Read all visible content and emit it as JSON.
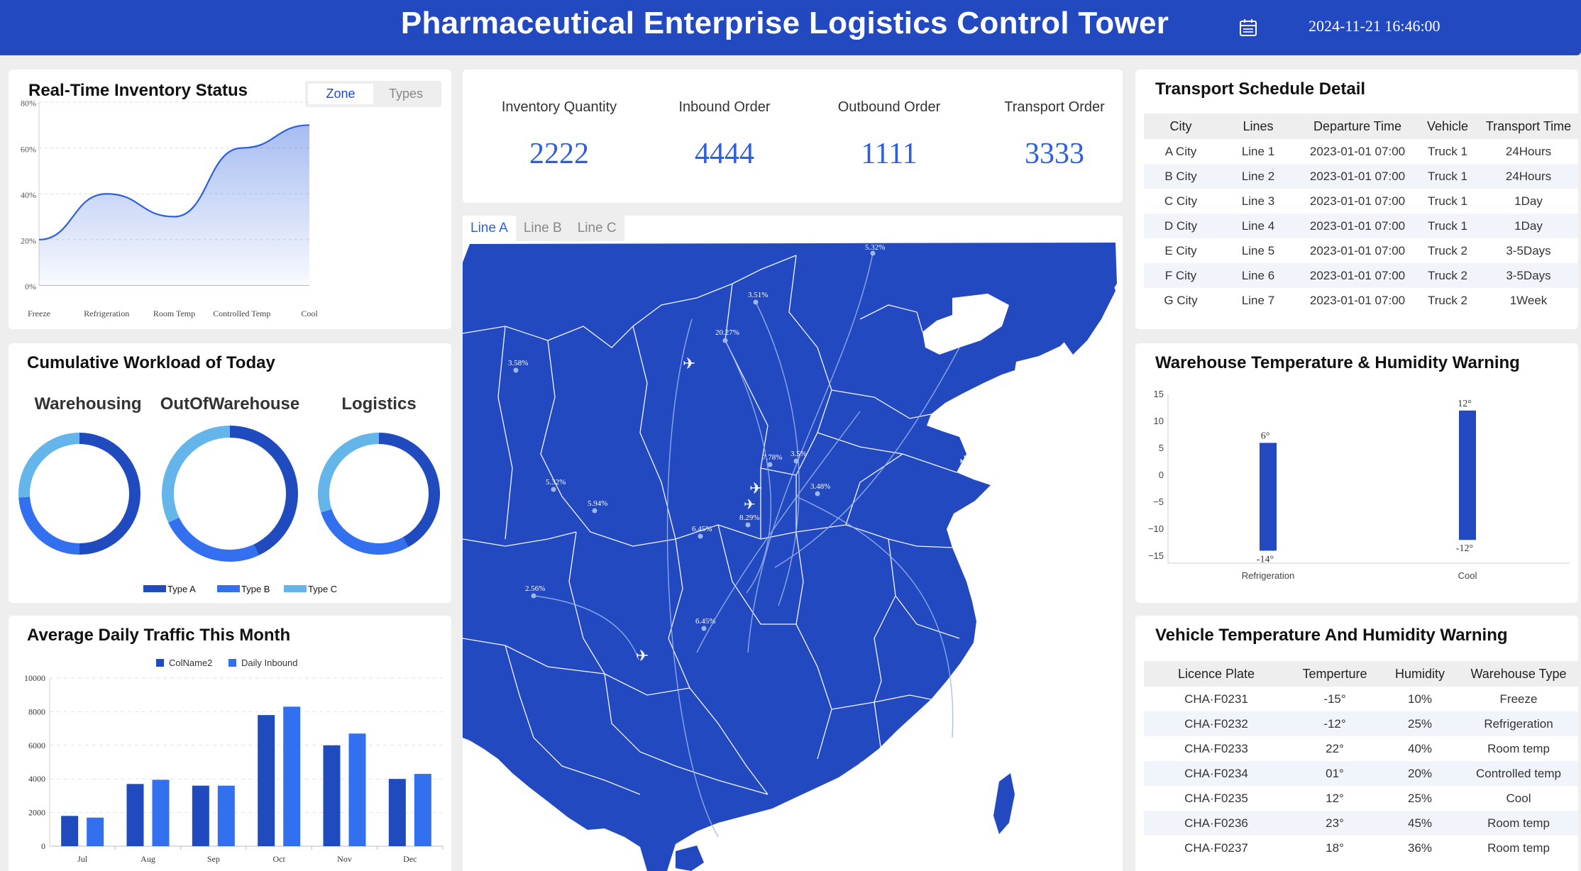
{
  "header": {
    "title": "Pharmaceutical Enterprise Logistics Control Tower",
    "datetime": "2024-11-21 16:46:00",
    "calendar_icon": "calendar-icon"
  },
  "colors": {
    "primary": "#2249c0",
    "accent": "#2c5fe0",
    "typeA": "#1f4bbf",
    "typeB": "#3370f0",
    "typeC": "#64b5ea"
  },
  "inventory": {
    "title": "Real-Time Inventory Status",
    "tabs": [
      "Zone",
      "Types"
    ],
    "active_tab": "Zone"
  },
  "workload": {
    "title": "Cumulative Workload of Today",
    "groups": [
      "Warehousing",
      "OutOfWarehouse",
      "Logistics"
    ],
    "legend": [
      "Type A",
      "Type B",
      "Type C"
    ]
  },
  "traffic": {
    "title": "Average Daily Traffic This Month",
    "legend": [
      "ColName2",
      "Daily Inbound"
    ]
  },
  "stats": [
    {
      "label": "Inventory Quantity",
      "value": "2222"
    },
    {
      "label": "Inbound Order",
      "value": "4444"
    },
    {
      "label": "Outbound Order",
      "value": "1111"
    },
    {
      "label": "Transport Order",
      "value": "3333"
    }
  ],
  "map": {
    "tabs": [
      "Line A",
      "Line B",
      "Line C"
    ],
    "active_tab": "Line A",
    "point_labels": [
      "5.32%",
      "3.51%",
      "20.27%",
      "3.58%",
      "7.78%",
      "3.5%",
      "3.48%",
      "5.32%",
      "5.94%",
      "8.29%",
      "6.45%",
      "2.56%",
      "6.45%"
    ]
  },
  "schedule": {
    "title": "Transport Schedule Detail",
    "columns": [
      "City",
      "Lines",
      "Departure Time",
      "Vehicle",
      "Transport Time"
    ],
    "rows": [
      [
        "A City",
        "Line 1",
        "2023-01-01 07:00",
        "Truck 1",
        "24Hours"
      ],
      [
        "B City",
        "Line 2",
        "2023-01-01 07:00",
        "Truck 1",
        "24Hours"
      ],
      [
        "C City",
        "Line 3",
        "2023-01-01 07:00",
        "Truck 1",
        "1Day"
      ],
      [
        "D City",
        "Line 4",
        "2023-01-01 07:00",
        "Truck 1",
        "1Day"
      ],
      [
        "E City",
        "Line 5",
        "2023-01-01 07:00",
        "Truck 2",
        "3-5Days"
      ],
      [
        "F City",
        "Line 6",
        "2023-01-01 07:00",
        "Truck 2",
        "3-5Days"
      ],
      [
        "G City",
        "Line 7",
        "2023-01-01 07:00",
        "Truck 2",
        "1Week"
      ]
    ]
  },
  "warehouse_warning": {
    "title": "Warehouse Temperature & Humidity Warning"
  },
  "vehicle_warning": {
    "title": "Vehicle Temperature And Humidity Warning",
    "columns": [
      "Licence Plate",
      "Temperture",
      "Humidity",
      "Warehouse Type"
    ],
    "rows": [
      [
        "CHA·F0231",
        "-15°",
        "10%",
        "Freeze"
      ],
      [
        "CHA·F0232",
        "-12°",
        "25%",
        "Refrigeration"
      ],
      [
        "CHA·F0233",
        "22°",
        "40%",
        "Room temp"
      ],
      [
        "CHA·F0234",
        "01°",
        "20%",
        "Controlled temp"
      ],
      [
        "CHA·F0235",
        "12°",
        "25%",
        "Cool"
      ],
      [
        "CHA·F0236",
        "23°",
        "45%",
        "Room temp"
      ],
      [
        "CHA·F0237",
        "18°",
        "36%",
        "Room temp"
      ]
    ]
  },
  "chart_data": [
    {
      "type": "area",
      "categories": [
        "Freeze",
        "Refrigeration",
        "Room Temp",
        "Controlled Temp",
        "Cool"
      ],
      "values": [
        20,
        40,
        30,
        60,
        70
      ],
      "ylim": [
        0,
        80
      ],
      "yticks": [
        "0%",
        "20%",
        "40%",
        "60%",
        "80%"
      ],
      "grid": true
    },
    {
      "type": "pie",
      "groups": [
        {
          "name": "Warehousing",
          "slices": [
            {
              "name": "Type A",
              "value": 50
            },
            {
              "name": "Type B",
              "value": 24
            },
            {
              "name": "Type C",
              "value": 26
            }
          ]
        },
        {
          "name": "OutOfWarehouse",
          "slices": [
            {
              "name": "Type A",
              "value": 43
            },
            {
              "name": "Type B",
              "value": 25
            },
            {
              "name": "Type C",
              "value": 32
            }
          ]
        },
        {
          "name": "Logistics",
          "slices": [
            {
              "name": "Type A",
              "value": 42
            },
            {
              "name": "Type B",
              "value": 28
            },
            {
              "name": "Type C",
              "value": 30
            }
          ]
        }
      ],
      "legend_position": "bottom"
    },
    {
      "type": "bar",
      "categories": [
        "Jul",
        "Aug",
        "Sep",
        "Oct",
        "Nov",
        "Dec"
      ],
      "series": [
        {
          "name": "ColName2",
          "values": [
            1800,
            3700,
            3600,
            7800,
            6000,
            4000
          ]
        },
        {
          "name": "Daily Inbound",
          "values": [
            1700,
            3950,
            3600,
            8300,
            6700,
            4300
          ]
        }
      ],
      "ylim": [
        0,
        10000
      ],
      "yticks": [
        0,
        2000,
        4000,
        6000,
        8000,
        10000
      ],
      "legend_position": "top"
    },
    {
      "type": "bar",
      "categories": [
        "Refrigeration",
        "Cool"
      ],
      "series": [
        {
          "max": [
            6,
            12
          ],
          "min": [
            -14,
            -12
          ]
        }
      ],
      "max_labels": [
        "6°",
        "12°"
      ],
      "min_labels": [
        "-14°",
        "-12°"
      ],
      "ylim": [
        -15,
        15
      ],
      "yticks": [
        "15",
        "10",
        "5",
        "0",
        "−5",
        "−10",
        "−15"
      ]
    }
  ]
}
